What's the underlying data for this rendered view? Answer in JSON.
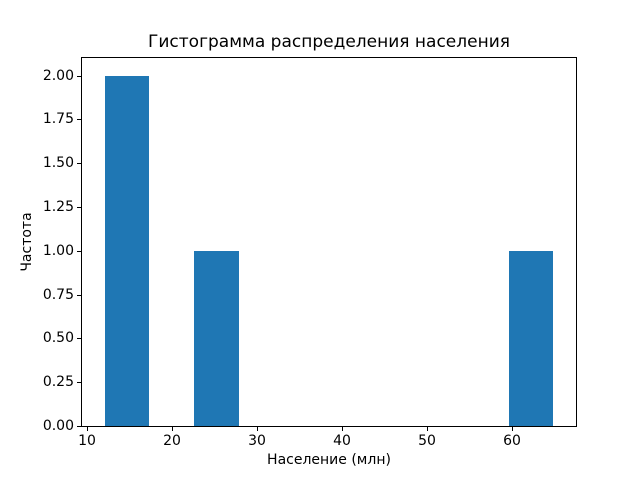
{
  "chart_data": {
    "type": "histogram",
    "title": "Гистограмма распределения населения",
    "xlabel": "Население (млн)",
    "ylabel": "Частота",
    "bar_color": "#1f77b4",
    "bin_edges": [
      12.1,
      17.38,
      22.66,
      27.94,
      33.22,
      38.5,
      43.78,
      49.06,
      54.34,
      59.62,
      64.9
    ],
    "counts": [
      2,
      0,
      1,
      0,
      0,
      0,
      0,
      0,
      0,
      1
    ],
    "xlim": [
      9.46,
      67.54
    ],
    "ylim": [
      0,
      2.1
    ],
    "xticks": [
      10,
      20,
      30,
      40,
      50,
      60
    ],
    "xtick_labels": [
      "10",
      "20",
      "30",
      "40",
      "50",
      "60"
    ],
    "yticks": [
      0,
      0.25,
      0.5,
      0.75,
      1,
      1.25,
      1.5,
      1.75,
      2
    ],
    "ytick_labels": [
      "0.00",
      "0.25",
      "0.50",
      "0.75",
      "1.00",
      "1.25",
      "1.50",
      "1.75",
      "2.00"
    ],
    "grid": false,
    "legend": null
  }
}
